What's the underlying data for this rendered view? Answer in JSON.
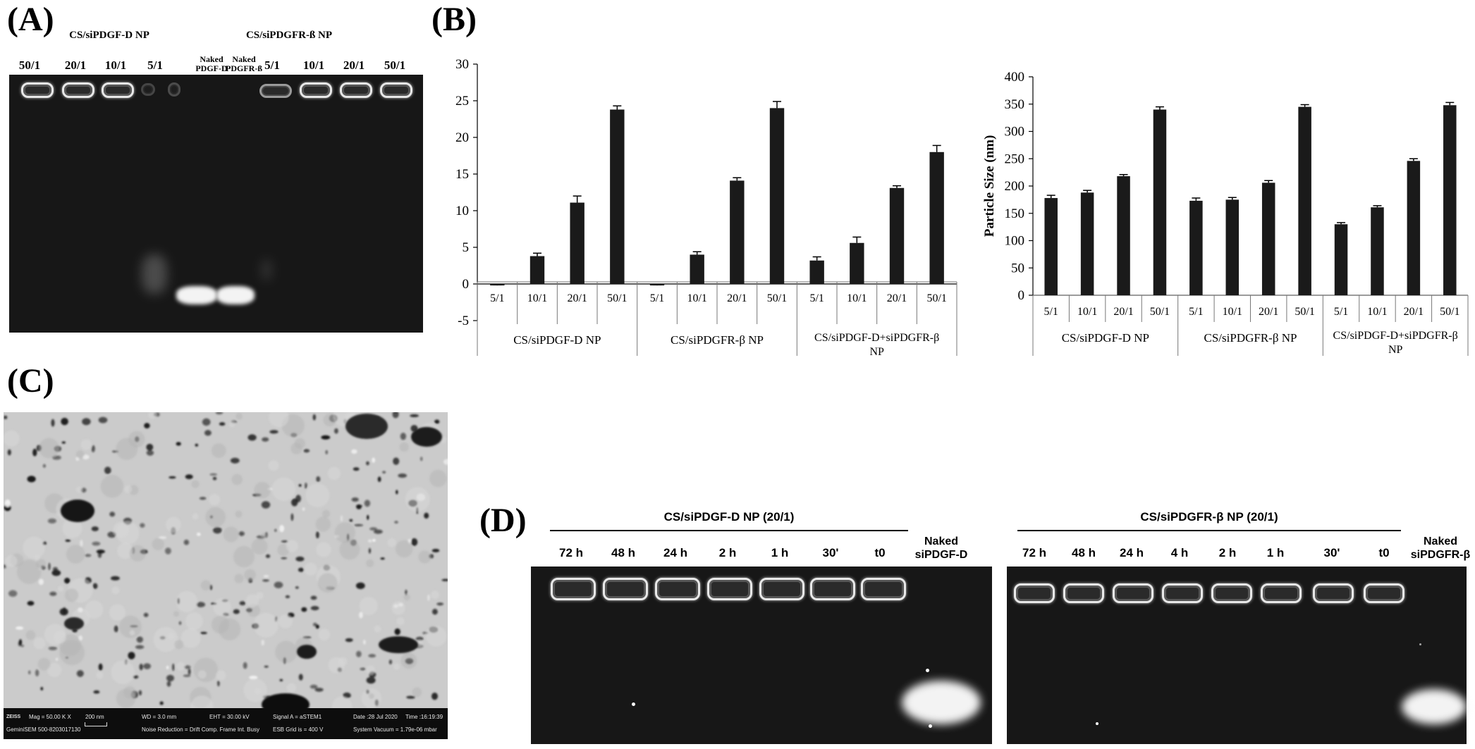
{
  "panels": {
    "a": "(A)",
    "b": "(B)",
    "c": "(C)",
    "d": "(D)"
  },
  "panel_a": {
    "group_left": "CS/siPDGF-D NP",
    "group_right": "CS/siPDGFR-ß NP",
    "lanes_left": [
      "50/1",
      "20/1",
      "10/1",
      "5/1"
    ],
    "naked": [
      {
        "line1": "Naked",
        "line2": "PDGF-D"
      },
      {
        "line1": "Naked",
        "line2": "PDGFR-ß"
      }
    ],
    "lanes_right": [
      "5/1",
      "10/1",
      "20/1",
      "50/1"
    ]
  },
  "chart_data": [
    {
      "type": "bar",
      "title": "",
      "ylabel": "",
      "ylim": [
        -5,
        30
      ],
      "yticks": [
        -5,
        0,
        5,
        10,
        15,
        20,
        25,
        30
      ],
      "groups": [
        "CS/siPDGF-D NP",
        "CS/siPDGFR-β NP",
        "CS/siPDGF-D+siPDGFR-β NP"
      ],
      "categories": [
        "5/1",
        "10/1",
        "20/1",
        "50/1",
        "5/1",
        "10/1",
        "20/1",
        "50/1",
        "5/1",
        "10/1",
        "20/1",
        "50/1"
      ],
      "values": [
        -0.2,
        3.8,
        11.1,
        23.8,
        -0.2,
        4.0,
        14.1,
        24.0,
        3.2,
        5.6,
        13.1,
        18.0
      ],
      "errors": [
        0.1,
        0.4,
        0.9,
        0.5,
        0.1,
        0.4,
        0.4,
        0.9,
        0.5,
        0.8,
        0.3,
        0.9
      ]
    },
    {
      "type": "bar",
      "title": "",
      "ylabel": "Particle Size (nm)",
      "ylim": [
        0,
        400
      ],
      "yticks": [
        0,
        50,
        100,
        150,
        200,
        250,
        300,
        350,
        400
      ],
      "groups": [
        "CS/siPDGF-D NP",
        "CS/siPDGFR-β NP",
        "CS/siPDGF-D+siPDGFR-β NP"
      ],
      "categories": [
        "5/1",
        "10/1",
        "20/1",
        "50/1",
        "5/1",
        "10/1",
        "20/1",
        "50/1",
        "5/1",
        "10/1",
        "20/1",
        "50/1"
      ],
      "values": [
        178,
        188,
        218,
        340,
        173,
        175,
        206,
        345,
        130,
        161,
        246,
        348
      ],
      "errors": [
        5,
        4,
        3,
        5,
        5,
        4,
        4,
        4,
        3,
        3,
        4,
        5
      ]
    }
  ],
  "panel_c": {
    "info": [
      "ZEISS",
      "Mag = 50.00 K X",
      "200 nm",
      "WD = 3.0 mm",
      "EHT = 30.00 kV",
      "Signal A = aSTEM1",
      "Date :28 Jul 2020",
      "Time :16:19:39",
      "GeminiSEM 500-8203017130",
      "Noise Reduction = Drift Comp. Frame Int. Busy",
      "ESB Grid is = 400 V",
      "System Vacuum = 1.79e-06 mbar"
    ]
  },
  "panel_d": {
    "left": {
      "title": "CS/siPDGF-D NP (20/1)",
      "lanes": [
        "72 h",
        "48 h",
        "24 h",
        "2 h",
        "1 h",
        "30'",
        "t0"
      ],
      "naked_line1": "Naked",
      "naked_line2": "siPDGF-D"
    },
    "right": {
      "title": "CS/siPDGFR-β NP (20/1)",
      "lanes": [
        "72 h",
        "48 h",
        "24 h",
        "4 h",
        "2 h",
        "1 h",
        "30'",
        "t0"
      ],
      "naked_line1": "Naked",
      "naked_line2": "siPDGFR-β"
    }
  }
}
